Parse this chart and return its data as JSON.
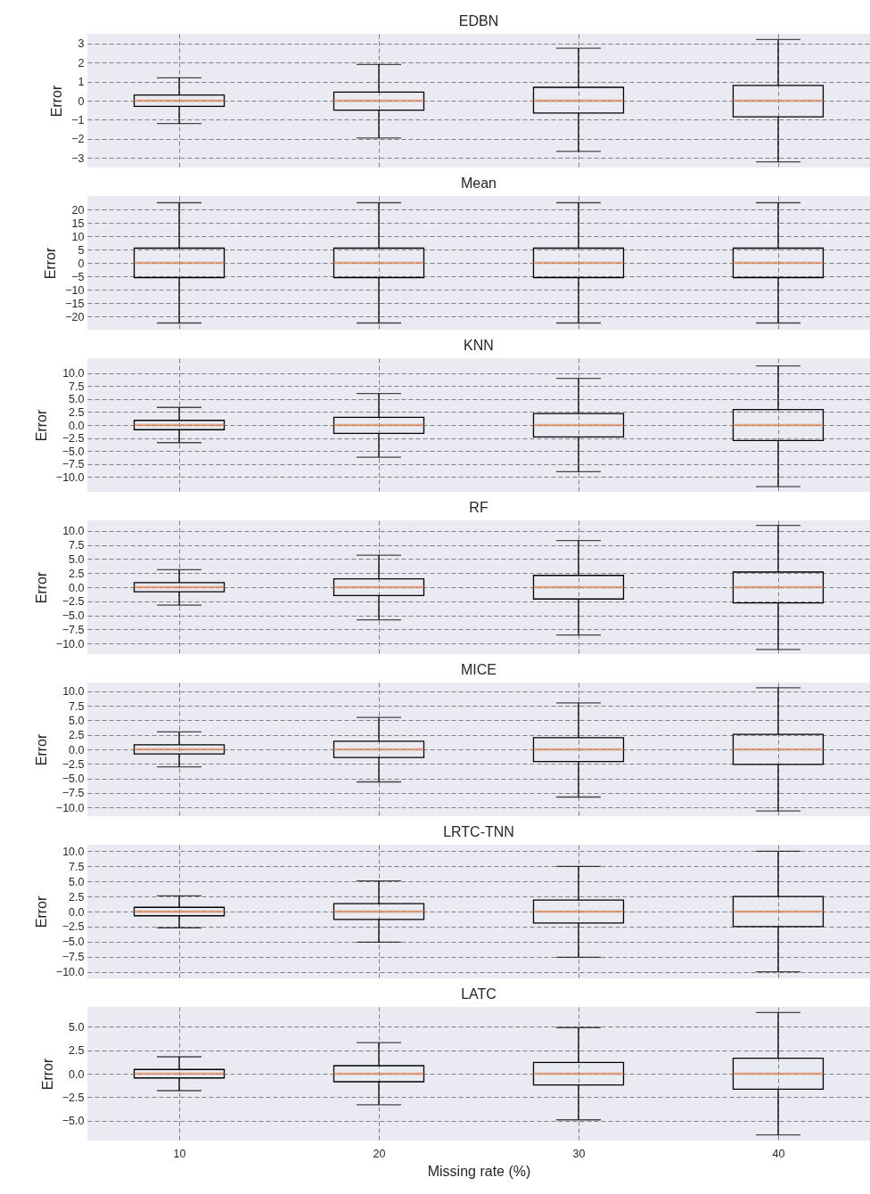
{
  "chart_data": [
    {
      "type": "box",
      "title": "EDBN",
      "ylabel": "Error",
      "categories": [
        "10",
        "20",
        "30",
        "40"
      ],
      "grid": true,
      "tick_labels": "y",
      "ylim": [
        -3.5,
        3.5
      ],
      "yticks": [
        {
          "value": -3,
          "label": "−3"
        },
        {
          "value": -2,
          "label": "−2"
        },
        {
          "value": -1,
          "label": "−1"
        },
        0,
        1,
        2,
        3
      ],
      "boxes": [
        {
          "low": -1.2,
          "q1": -0.3,
          "median": 0,
          "q3": 0.3,
          "high": 1.2
        },
        {
          "low": -1.95,
          "q1": -0.5,
          "median": 0,
          "q3": 0.45,
          "high": 1.9
        },
        {
          "low": -2.65,
          "q1": -0.65,
          "median": 0,
          "q3": 0.7,
          "high": 2.75
        },
        {
          "low": -3.2,
          "q1": -0.85,
          "median": 0,
          "q3": 0.8,
          "high": 3.2
        }
      ]
    },
    {
      "type": "box",
      "title": "Mean",
      "ylabel": "Error",
      "categories": [
        "10",
        "20",
        "30",
        "40"
      ],
      "grid": true,
      "tick_labels": "y",
      "ylim": [
        -25,
        25
      ],
      "yticks": [
        {
          "value": -20,
          "label": "−20"
        },
        {
          "value": -15,
          "label": "−15"
        },
        {
          "value": -10,
          "label": "−10"
        },
        {
          "value": -5,
          "label": "−5"
        },
        0,
        5,
        10,
        15,
        20
      ],
      "boxes": [
        {
          "low": -22.5,
          "q1": -5.5,
          "median": 0,
          "q3": 5.5,
          "high": 22.5
        },
        {
          "low": -22.5,
          "q1": -5.5,
          "median": 0,
          "q3": 5.5,
          "high": 22.5
        },
        {
          "low": -22.5,
          "q1": -5.5,
          "median": 0,
          "q3": 5.5,
          "high": 22.5
        },
        {
          "low": -22.5,
          "q1": -5.5,
          "median": 0,
          "q3": 5.5,
          "high": 22.5
        }
      ]
    },
    {
      "type": "box",
      "title": "KNN",
      "ylabel": "Error",
      "categories": [
        "10",
        "20",
        "30",
        "40"
      ],
      "grid": true,
      "tick_labels": "y",
      "ylim": [
        -12.9,
        12.9
      ],
      "yticks": [
        {
          "value": -10,
          "label": "−10.0"
        },
        {
          "value": -7.5,
          "label": "−7.5"
        },
        {
          "value": -5,
          "label": "−5.0"
        },
        {
          "value": -2.5,
          "label": "−2.5"
        },
        {
          "value": 0,
          "label": "0.0"
        },
        2.5,
        {
          "value": 5,
          "label": "5.0"
        },
        7.5,
        {
          "value": 10,
          "label": "10.0"
        }
      ],
      "boxes": [
        {
          "low": -3.4,
          "q1": -0.9,
          "median": 0,
          "q3": 0.9,
          "high": 3.4
        },
        {
          "low": -6.2,
          "q1": -1.6,
          "median": 0,
          "q3": 1.5,
          "high": 6.1
        },
        {
          "low": -9.0,
          "q1": -2.3,
          "median": 0,
          "q3": 2.2,
          "high": 9.0
        },
        {
          "low": -11.9,
          "q1": -3.0,
          "median": 0,
          "q3": 3.0,
          "high": 11.4
        }
      ]
    },
    {
      "type": "box",
      "title": "RF",
      "ylabel": "Error",
      "categories": [
        "10",
        "20",
        "30",
        "40"
      ],
      "grid": true,
      "tick_labels": "y",
      "ylim": [
        -11.9,
        11.9
      ],
      "yticks": [
        {
          "value": -10,
          "label": "−10.0"
        },
        {
          "value": -7.5,
          "label": "−7.5"
        },
        {
          "value": -5,
          "label": "−5.0"
        },
        {
          "value": -2.5,
          "label": "−2.5"
        },
        {
          "value": 0,
          "label": "0.0"
        },
        2.5,
        {
          "value": 5,
          "label": "5.0"
        },
        7.5,
        {
          "value": 10,
          "label": "10.0"
        }
      ],
      "boxes": [
        {
          "low": -3.2,
          "q1": -0.8,
          "median": 0,
          "q3": 0.8,
          "high": 3.1
        },
        {
          "low": -5.8,
          "q1": -1.5,
          "median": 0,
          "q3": 1.5,
          "high": 5.7
        },
        {
          "low": -8.5,
          "q1": -2.1,
          "median": 0,
          "q3": 2.1,
          "high": 8.3
        },
        {
          "low": -11.1,
          "q1": -2.8,
          "median": 0,
          "q3": 2.7,
          "high": 11.0
        }
      ]
    },
    {
      "type": "box",
      "title": "MICE",
      "ylabel": "Error",
      "categories": [
        "10",
        "20",
        "30",
        "40"
      ],
      "grid": true,
      "tick_labels": "y",
      "ylim": [
        -11.5,
        11.5
      ],
      "yticks": [
        {
          "value": -10,
          "label": "−10.0"
        },
        {
          "value": -7.5,
          "label": "−7.5"
        },
        {
          "value": -5,
          "label": "−5.0"
        },
        {
          "value": -2.5,
          "label": "−2.5"
        },
        {
          "value": 0,
          "label": "0.0"
        },
        2.5,
        {
          "value": 5,
          "label": "5.0"
        },
        7.5,
        {
          "value": 10,
          "label": "10.0"
        }
      ],
      "boxes": [
        {
          "low": -3.0,
          "q1": -0.8,
          "median": 0,
          "q3": 0.8,
          "high": 3.0
        },
        {
          "low": -5.6,
          "q1": -1.4,
          "median": 0,
          "q3": 1.4,
          "high": 5.5
        },
        {
          "low": -8.2,
          "q1": -2.1,
          "median": 0,
          "q3": 2.0,
          "high": 8.0
        },
        {
          "low": -10.6,
          "q1": -2.6,
          "median": 0,
          "q3": 2.6,
          "high": 10.6
        }
      ]
    },
    {
      "type": "box",
      "title": "LRTC-TNN",
      "ylabel": "Error",
      "categories": [
        "10",
        "20",
        "30",
        "40"
      ],
      "grid": true,
      "tick_labels": "y",
      "ylim": [
        -11.1,
        11.1
      ],
      "yticks": [
        {
          "value": -10,
          "label": "−10.0"
        },
        {
          "value": -7.5,
          "label": "−7.5"
        },
        {
          "value": -5,
          "label": "−5.0"
        },
        {
          "value": -2.5,
          "label": "−2.5"
        },
        {
          "value": 0,
          "label": "0.0"
        },
        2.5,
        {
          "value": 5,
          "label": "5.0"
        },
        7.5,
        {
          "value": 10,
          "label": "10.0"
        }
      ],
      "boxes": [
        {
          "low": -2.7,
          "q1": -0.7,
          "median": 0,
          "q3": 0.7,
          "high": 2.6
        },
        {
          "low": -5.1,
          "q1": -1.3,
          "median": 0,
          "q3": 1.3,
          "high": 5.1
        },
        {
          "low": -7.6,
          "q1": -1.9,
          "median": 0,
          "q3": 1.9,
          "high": 7.5
        },
        {
          "low": -10.0,
          "q1": -2.5,
          "median": 0,
          "q3": 2.5,
          "high": 10.0
        }
      ]
    },
    {
      "type": "box",
      "title": "LATC",
      "ylabel": "Error",
      "xlabel": "Missing rate (%)",
      "categories": [
        "10",
        "20",
        "30",
        "40"
      ],
      "grid": true,
      "ylim": [
        -7.1,
        7.1
      ],
      "yticks": [
        {
          "value": -5,
          "label": "−5.0"
        },
        {
          "value": -2.5,
          "label": "−2.5"
        },
        {
          "value": 0,
          "label": "0.0"
        },
        2.5,
        {
          "value": 5,
          "label": "5.0"
        }
      ],
      "boxes": [
        {
          "low": -1.8,
          "q1": -0.45,
          "median": 0,
          "q3": 0.45,
          "high": 1.8
        },
        {
          "low": -3.3,
          "q1": -0.85,
          "median": 0,
          "q3": 0.85,
          "high": 3.3
        },
        {
          "low": -4.9,
          "q1": -1.2,
          "median": 0,
          "q3": 1.2,
          "high": 4.9
        },
        {
          "low": -6.5,
          "q1": -1.65,
          "median": 0,
          "q3": 1.65,
          "high": 6.5
        }
      ]
    }
  ]
}
